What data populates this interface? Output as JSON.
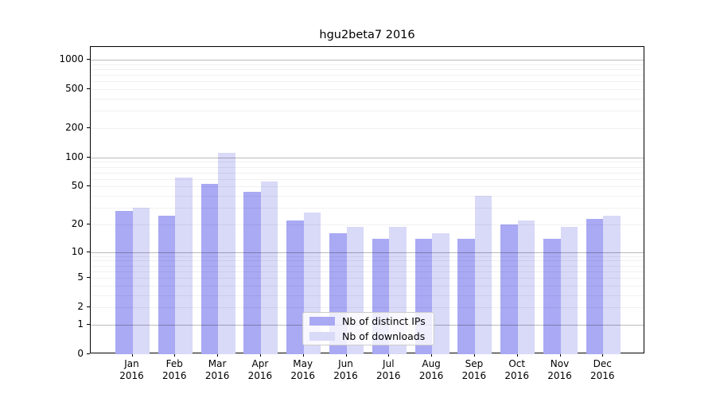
{
  "title": "hgu2beta7 2016",
  "colors": {
    "distinct_ips_bar": "#a9a9f4",
    "downloads_bar": "#d9d9f8",
    "axis": "#000000",
    "legend_border": "#cccccc"
  },
  "chart_data": {
    "type": "bar",
    "title": "hgu2beta7 2016",
    "categories": [
      "Jan 2016",
      "Feb 2016",
      "Mar 2016",
      "Apr 2016",
      "May 2016",
      "Jun 2016",
      "Jul 2016",
      "Aug 2016",
      "Sep 2016",
      "Oct 2016",
      "Nov 2016",
      "Dec 2016"
    ],
    "month_labels": [
      "Jan",
      "Feb",
      "Mar",
      "Apr",
      "May",
      "Jun",
      "Jul",
      "Aug",
      "Sep",
      "Oct",
      "Nov",
      "Dec"
    ],
    "year_label": "2016",
    "series": [
      {
        "name": "Nb of distinct IPs",
        "color": "#a9a9f4",
        "values": [
          28,
          25,
          53,
          44,
          22,
          16,
          14,
          14,
          14,
          20,
          14,
          23
        ]
      },
      {
        "name": "Nb of downloads",
        "color": "#d9d9f8",
        "values": [
          30,
          62,
          112,
          57,
          27,
          19,
          19,
          16,
          40,
          22,
          19,
          25
        ]
      }
    ],
    "xlabel": "",
    "ylabel": "",
    "yscale": "log1p",
    "y_ticks": [
      0,
      1,
      2,
      5,
      10,
      20,
      50,
      100,
      200,
      500,
      1000
    ],
    "ylim": [
      0,
      1370
    ],
    "grid": true,
    "grid_minor_ticks": [
      2,
      3,
      4,
      5,
      6,
      7,
      8,
      9,
      20,
      30,
      40,
      50,
      60,
      70,
      80,
      90,
      200,
      300,
      400,
      500,
      600,
      700,
      800,
      900
    ],
    "grid_major_ticks": [
      1,
      10,
      100,
      1000
    ],
    "legend_position": "lower center"
  }
}
